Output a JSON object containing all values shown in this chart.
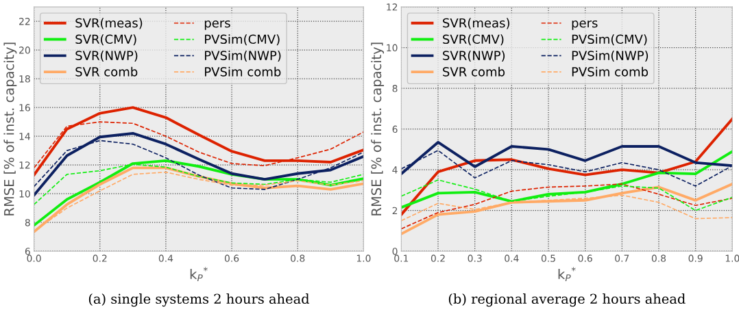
{
  "chart_data": [
    {
      "type": "line",
      "xlabel": "k$_{P}$$^{*}$",
      "ylabel": "RMSE [% of inst. capacity]",
      "x": [
        0.0,
        0.1,
        0.2,
        0.3,
        0.4,
        0.5,
        0.6,
        0.7,
        0.8,
        0.9,
        1.0
      ],
      "xlim": [
        0.0,
        1.0
      ],
      "xticks": [
        {
          "value": 0.0,
          "label": "0.0"
        },
        {
          "value": 0.2,
          "label": "0.2"
        },
        {
          "value": 0.4,
          "label": "0.4"
        },
        {
          "value": 0.6,
          "label": "0.6"
        },
        {
          "value": 0.8,
          "label": "0.8"
        },
        {
          "value": 1.0,
          "label": "1.0"
        }
      ],
      "ylim": [
        6,
        23
      ],
      "yticks": [
        6,
        8,
        10,
        12,
        14,
        16,
        18,
        20,
        22
      ],
      "grid": true,
      "legend": "top left",
      "marker": "none",
      "annotations": [
        "(a) single systems 2 hours ahead"
      ],
      "series": [
        {
          "name": "SVR(meas)",
          "color": "#dd2200",
          "line_style": "solid",
          "values": [
            11.3,
            14.5,
            15.6,
            16.0,
            15.3,
            14.1,
            12.95,
            12.3,
            12.3,
            12.2,
            13.05
          ]
        },
        {
          "name": "SVR(CMV)",
          "color": "#11ee11",
          "line_style": "solid",
          "values": [
            7.8,
            9.6,
            10.8,
            12.1,
            12.3,
            11.9,
            11.35,
            11.0,
            11.0,
            10.6,
            11.05
          ]
        },
        {
          "name": "SVR(NWP)",
          "color": "#0d2161",
          "line_style": "solid",
          "values": [
            9.9,
            12.65,
            13.95,
            14.2,
            13.45,
            12.4,
            11.4,
            11.0,
            11.4,
            11.65,
            12.6
          ]
        },
        {
          "name": "SVR comb",
          "color": "#ffaa66",
          "line_style": "solid",
          "values": [
            7.35,
            9.25,
            10.65,
            11.8,
            11.8,
            11.2,
            10.7,
            10.4,
            10.55,
            10.3,
            10.7
          ]
        },
        {
          "name": "pers",
          "color": "#dd2200",
          "line_style": "dashed",
          "values": [
            11.8,
            14.7,
            15.0,
            14.9,
            14.0,
            12.9,
            12.1,
            11.95,
            12.5,
            13.1,
            14.3
          ]
        },
        {
          "name": "PVSim(CMV)",
          "color": "#11ee11",
          "line_style": "dashed",
          "values": [
            9.25,
            11.35,
            11.6,
            12.05,
            11.85,
            11.2,
            10.75,
            10.65,
            11.0,
            10.8,
            11.35
          ]
        },
        {
          "name": "PVSim(NWP)",
          "color": "#0d2161",
          "line_style": "dashed",
          "values": [
            10.5,
            13.0,
            13.7,
            13.45,
            12.5,
            11.3,
            10.4,
            10.3,
            11.0,
            11.8,
            12.9
          ]
        },
        {
          "name": "PVSim comb",
          "color": "#ffaa66",
          "line_style": "dashed",
          "values": [
            7.4,
            9.0,
            10.2,
            11.35,
            11.5,
            11.0,
            10.6,
            10.6,
            10.9,
            10.6,
            10.9
          ]
        }
      ]
    },
    {
      "type": "line",
      "xlabel": "k$_{P}$$^{*}$",
      "ylabel": "RMSE [% of inst. capacity]",
      "x": [
        0.1,
        0.2,
        0.3,
        0.4,
        0.5,
        0.6,
        0.7,
        0.8,
        0.9,
        1.0
      ],
      "xlim": [
        0.1,
        1.0
      ],
      "xticks": [
        0.1,
        0.2,
        0.3,
        0.4,
        0.5,
        0.6,
        0.7,
        0.8,
        0.9,
        {
          "value": 1.0,
          "label": "1.0"
        }
      ],
      "ylim": [
        0,
        12
      ],
      "yticks": [
        0,
        2,
        4,
        6,
        8,
        10,
        12
      ],
      "grid": true,
      "legend": "top left",
      "marker": "none",
      "annotations": [
        "(b) regional average 2 hours ahead"
      ],
      "series": [
        {
          "name": "SVR(meas)",
          "color": "#dd2200",
          "line_style": "solid",
          "values": [
            1.8,
            3.9,
            4.45,
            4.5,
            4.05,
            3.75,
            4.0,
            3.85,
            4.4,
            6.5
          ]
        },
        {
          "name": "SVR(CMV)",
          "color": "#11ee11",
          "line_style": "solid",
          "values": [
            2.15,
            2.85,
            2.9,
            2.45,
            2.8,
            2.9,
            3.3,
            3.85,
            3.8,
            4.9
          ]
        },
        {
          "name": "SVR(NWP)",
          "color": "#0d2161",
          "line_style": "solid",
          "values": [
            3.8,
            5.35,
            4.15,
            5.15,
            5.0,
            4.45,
            5.15,
            5.15,
            4.35,
            4.2
          ]
        },
        {
          "name": "SVR comb",
          "color": "#ffaa66",
          "line_style": "solid",
          "values": [
            0.85,
            1.8,
            1.95,
            2.4,
            2.45,
            2.5,
            2.85,
            3.15,
            2.5,
            3.3
          ]
        },
        {
          "name": "pers",
          "color": "#dd2200",
          "line_style": "dashed",
          "values": [
            1.1,
            1.9,
            2.3,
            2.95,
            3.15,
            3.2,
            3.3,
            2.8,
            2.25,
            2.6
          ]
        },
        {
          "name": "PVSim(CMV)",
          "color": "#11ee11",
          "line_style": "dashed",
          "values": [
            2.7,
            3.5,
            3.05,
            2.45,
            2.7,
            2.9,
            3.2,
            3.1,
            2.0,
            2.65
          ]
        },
        {
          "name": "PVSim(NWP)",
          "color": "#0d2161",
          "line_style": "dashed",
          "values": [
            4.05,
            4.95,
            3.6,
            4.45,
            4.25,
            3.9,
            4.35,
            4.0,
            3.2,
            4.2
          ]
        },
        {
          "name": "PVSim comb",
          "color": "#ffaa66",
          "line_style": "dashed",
          "values": [
            1.5,
            2.35,
            2.05,
            2.4,
            2.5,
            2.6,
            2.75,
            2.4,
            1.6,
            1.65
          ]
        }
      ]
    }
  ]
}
